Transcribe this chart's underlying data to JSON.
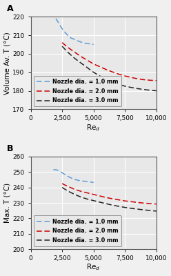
{
  "panel_A": {
    "ylabel": "Volume Av. Τ (°C)",
    "ylim": [
      170,
      220
    ],
    "yticks": [
      170,
      180,
      190,
      200,
      210,
      220
    ],
    "series": [
      {
        "label": "Nozzle dia. = 1.0 mm",
        "color": "#5b9bd5",
        "x": [
          2000,
          2200,
          2400,
          2600,
          2800,
          3000,
          3200,
          3400,
          3600,
          3800,
          4000,
          4200,
          4400,
          4600,
          4800,
          5000
        ],
        "y": [
          219.0,
          216.8,
          214.5,
          212.5,
          211.0,
          209.5,
          208.5,
          208.0,
          207.2,
          206.8,
          206.3,
          205.9,
          205.6,
          205.4,
          205.2,
          205.0
        ]
      },
      {
        "label": "Nozzle dia. = 2.0 mm",
        "color": "#cc0000",
        "x": [
          2500,
          3000,
          3500,
          4000,
          4500,
          5000,
          5500,
          6000,
          6500,
          7000,
          7500,
          8000,
          8500,
          9000,
          9500,
          10000
        ],
        "y": [
          206.0,
          203.2,
          200.8,
          198.5,
          196.5,
          194.5,
          193.0,
          191.5,
          190.2,
          189.0,
          188.0,
          187.2,
          186.5,
          186.0,
          185.7,
          185.5
        ]
      },
      {
        "label": "Nozzle dia. = 3.0 mm",
        "color": "#222222",
        "x": [
          2500,
          3000,
          3500,
          4000,
          4500,
          5000,
          5500,
          6000,
          6500,
          7000,
          7500,
          8000,
          8500,
          9000,
          9500,
          10000
        ],
        "y": [
          204.0,
          200.5,
          197.5,
          195.0,
          192.5,
          190.0,
          188.0,
          186.5,
          185.0,
          183.5,
          182.5,
          181.8,
          181.2,
          180.7,
          180.3,
          180.0
        ]
      }
    ]
  },
  "panel_B": {
    "ylabel": "Max. Τ (°C)",
    "ylim": [
      200,
      260
    ],
    "yticks": [
      200,
      210,
      220,
      230,
      240,
      250,
      260
    ],
    "series": [
      {
        "label": "Nozzle dia. = 1.0 mm",
        "color": "#5b9bd5",
        "x": [
          1800,
          2000,
          2200,
          2400,
          2600,
          2800,
          3000,
          3200,
          3400,
          3600,
          3800,
          4000,
          4200,
          4400,
          4600,
          4800,
          5000
        ],
        "y": [
          251.5,
          251.5,
          251.0,
          250.0,
          249.0,
          248.0,
          247.0,
          246.2,
          245.5,
          245.0,
          244.6,
          244.3,
          244.1,
          243.9,
          243.7,
          243.5,
          243.3
        ]
      },
      {
        "label": "Nozzle dia. = 2.0 mm",
        "color": "#cc0000",
        "x": [
          2500,
          3000,
          3500,
          4000,
          4500,
          5000,
          5500,
          6000,
          6500,
          7000,
          7500,
          8000,
          8500,
          9000,
          9500,
          10000
        ],
        "y": [
          242.5,
          240.5,
          238.8,
          237.5,
          236.5,
          235.5,
          234.5,
          233.5,
          232.7,
          232.0,
          231.3,
          230.8,
          230.3,
          229.9,
          229.6,
          229.3
        ]
      },
      {
        "label": "Nozzle dia. = 3.0 mm",
        "color": "#222222",
        "x": [
          2500,
          3000,
          3500,
          4000,
          4500,
          5000,
          5500,
          6000,
          6500,
          7000,
          7500,
          8000,
          8500,
          9000,
          9500,
          10000
        ],
        "y": [
          240.0,
          237.5,
          235.5,
          233.8,
          232.5,
          231.5,
          230.5,
          229.5,
          228.6,
          227.8,
          227.1,
          226.5,
          226.0,
          225.5,
          225.1,
          224.7
        ]
      }
    ]
  },
  "xlim": [
    0,
    10000
  ],
  "xticks": [
    0,
    2500,
    5000,
    7500,
    10000
  ],
  "xticklabels": [
    "0",
    "2,500",
    "5,000",
    "7,500",
    "10,000"
  ],
  "xlabel": "Re$_d$",
  "label_A": "A",
  "label_B": "B",
  "plot_bg": "#e8e8e8",
  "fig_bg": "#f0f0f0",
  "grid_color": "#ffffff",
  "legend_fontsize": 5.8,
  "tick_fontsize": 6.5,
  "axis_label_fontsize": 7.5,
  "panel_label_fontsize": 9
}
